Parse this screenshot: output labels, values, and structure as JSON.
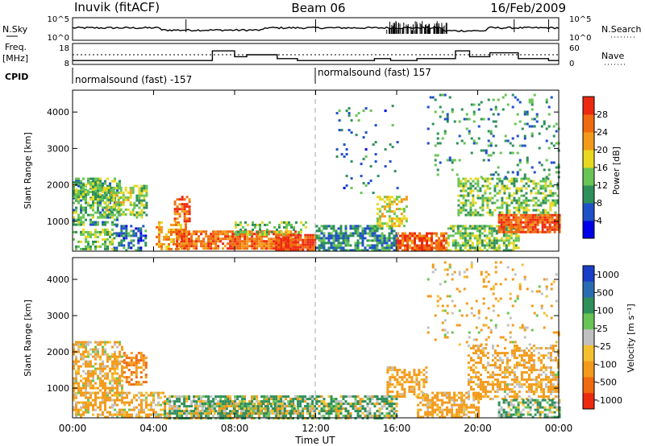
{
  "header": {
    "station": "Inuvik (fitACF)",
    "beam": "Beam 06",
    "date": "16/Feb/2009"
  },
  "top_panel": {
    "left_label": "N.Sky",
    "left_ticks": [
      "10^5",
      "10^0"
    ],
    "right_ticks": [
      "10^5",
      "10^0"
    ],
    "right_label": "N.Search"
  },
  "freq_panel": {
    "left_label_line1": "Freq.",
    "left_label_line2": "[MHz]",
    "left_ticks": [
      "18",
      "8"
    ],
    "right_ticks": [
      "60",
      "0"
    ],
    "right_label": "Nave",
    "freq_steps": [
      {
        "start": 0.0,
        "end": 6.9,
        "value": 10
      },
      {
        "start": 6.9,
        "end": 8.0,
        "value": 15
      },
      {
        "start": 8.0,
        "end": 8.6,
        "value": 12
      },
      {
        "start": 8.6,
        "end": 10.1,
        "value": 13
      },
      {
        "start": 10.1,
        "end": 11.1,
        "value": 11
      },
      {
        "start": 11.1,
        "end": 14.9,
        "value": 10
      },
      {
        "start": 14.9,
        "end": 15.7,
        "value": 11
      },
      {
        "start": 15.7,
        "end": 17.0,
        "value": 10
      },
      {
        "start": 17.0,
        "end": 18.9,
        "value": 11
      },
      {
        "start": 18.9,
        "end": 19.6,
        "value": 15
      },
      {
        "start": 19.6,
        "end": 20.6,
        "value": 12
      },
      {
        "start": 20.6,
        "end": 22.0,
        "value": 14
      },
      {
        "start": 22.0,
        "end": 23.5,
        "value": 11
      },
      {
        "start": 23.5,
        "end": 24.0,
        "value": 10
      }
    ]
  },
  "cpid": {
    "label": "CPID",
    "segments": [
      {
        "text": "normalsound (fast) -157",
        "start": 0
      },
      {
        "text": "normalsound (fast) 157",
        "start": 12
      }
    ]
  },
  "time_axis": {
    "label": "Time UT",
    "ticks": [
      "00:00",
      "04:00",
      "08:00",
      "12:00",
      "16:00",
      "20:00",
      "00:00"
    ],
    "tick_hours": [
      0,
      4,
      8,
      12,
      16,
      20,
      24
    ]
  },
  "power_panel": {
    "ylabel": "Slant Range [km]",
    "yticks": [
      "1000",
      "2000",
      "3000",
      "4000"
    ],
    "colorbar_label": "Power [dB]",
    "colorbar_ticks": [
      "4",
      "8",
      "12",
      "16",
      "20",
      "24",
      "28"
    ],
    "colorbar_colors": [
      "#0000e8",
      "#1e50c8",
      "#2e8f5a",
      "#68c454",
      "#e8d820",
      "#f39a1a",
      "#f06a10",
      "#ec2a10"
    ]
  },
  "velocity_panel": {
    "ylabel": "Slant Range [km]",
    "yticks": [
      "1000",
      "2000",
      "3000",
      "4000"
    ],
    "colorbar_label": "Velocity [m s⁻¹]",
    "colorbar_ticks": [
      "1000",
      "500",
      "100",
      "25",
      "-25",
      "-100",
      "-500",
      "-1000"
    ],
    "colorbar_colors": [
      "#1a3ec8",
      "#2a6cb0",
      "#2e8f5a",
      "#68c454",
      "#c0c0c0",
      "#f3c030",
      "#f39a1a",
      "#f06a10",
      "#ec2a10"
    ]
  },
  "chart_data": [
    {
      "type": "heatmap",
      "title": "Power",
      "xlabel": "Time UT",
      "ylabel": "Slant Range [km]",
      "xlim": [
        0,
        24
      ],
      "ylim": [
        180,
        4600
      ],
      "colorbar": {
        "label": "Power [dB]",
        "range": [
          0,
          32
        ]
      },
      "regions": [
        {
          "t0": 0.0,
          "t1": 2.3,
          "r0": 900,
          "r1": 2200,
          "level": 12,
          "density": 0.6
        },
        {
          "t0": 0.0,
          "t1": 1.5,
          "r0": 1600,
          "r1": 2100,
          "level": 14,
          "density": 0.55
        },
        {
          "t0": 1.5,
          "t1": 3.0,
          "r0": 1200,
          "r1": 1950,
          "level": 16,
          "density": 0.65
        },
        {
          "t0": 3.0,
          "t1": 3.6,
          "r0": 1100,
          "r1": 2000,
          "level": 14,
          "density": 0.5
        },
        {
          "t0": 2.0,
          "t1": 3.6,
          "r0": 200,
          "r1": 900,
          "level": 8,
          "density": 0.55
        },
        {
          "t0": 0.0,
          "t1": 2.0,
          "r0": 250,
          "r1": 800,
          "level": 14,
          "density": 0.5
        },
        {
          "t0": 4.1,
          "t1": 5.7,
          "r0": 250,
          "r1": 1000,
          "level": 22,
          "density": 0.55
        },
        {
          "t0": 5.0,
          "t1": 5.8,
          "r0": 1000,
          "r1": 1700,
          "level": 26,
          "density": 0.6
        },
        {
          "t0": 5.1,
          "t1": 11.0,
          "r0": 250,
          "r1": 750,
          "level": 25,
          "density": 0.85
        },
        {
          "t0": 8.0,
          "t1": 11.5,
          "r0": 650,
          "r1": 1000,
          "level": 14,
          "density": 0.45
        },
        {
          "t0": 10.0,
          "t1": 12.0,
          "r0": 200,
          "r1": 650,
          "level": 28,
          "density": 0.9
        },
        {
          "t0": 12.0,
          "t1": 16.0,
          "r0": 200,
          "r1": 900,
          "level": 10,
          "density": 0.7
        },
        {
          "t0": 15.0,
          "t1": 16.5,
          "r0": 900,
          "r1": 1700,
          "level": 18,
          "density": 0.55
        },
        {
          "t0": 16.0,
          "t1": 18.5,
          "r0": 200,
          "r1": 700,
          "level": 27,
          "density": 0.85
        },
        {
          "t0": 18.5,
          "t1": 22.0,
          "r0": 200,
          "r1": 900,
          "level": 14,
          "density": 0.7
        },
        {
          "t0": 19.0,
          "t1": 24.0,
          "r0": 1200,
          "r1": 2200,
          "level": 14,
          "density": 0.5
        },
        {
          "t0": 21.0,
          "t1": 24.0,
          "r0": 700,
          "r1": 1200,
          "level": 28,
          "density": 0.85
        },
        {
          "t0": 17.5,
          "t1": 24.0,
          "r0": 2200,
          "r1": 4500,
          "level": 10,
          "density": 0.12
        },
        {
          "t0": 13.0,
          "t1": 16.0,
          "r0": 1800,
          "r1": 4200,
          "level": 8,
          "density": 0.06
        }
      ]
    },
    {
      "type": "heatmap",
      "title": "Velocity",
      "xlabel": "Time UT",
      "ylabel": "Slant Range [km]",
      "xlim": [
        0,
        24
      ],
      "ylim": [
        180,
        4600
      ],
      "colorbar": {
        "label": "Velocity [m s⁻¹]",
        "range": [
          -1000,
          1000
        ]
      },
      "regions": [
        {
          "t0": 0.0,
          "t1": 2.5,
          "r0": 900,
          "r1": 2300,
          "level": -100,
          "density": 0.6
        },
        {
          "t0": 2.5,
          "t1": 3.6,
          "r0": 1100,
          "r1": 2000,
          "level": -300,
          "density": 0.5
        },
        {
          "t0": 0.0,
          "t1": 4.5,
          "r0": 200,
          "r1": 900,
          "level": -100,
          "density": 0.6
        },
        {
          "t0": 4.5,
          "t1": 12.0,
          "r0": 200,
          "r1": 800,
          "level": 50,
          "density": 0.75
        },
        {
          "t0": 6.0,
          "t1": 11.0,
          "r0": 300,
          "r1": 600,
          "level": 0,
          "density": 0.7
        },
        {
          "t0": 12.0,
          "t1": 16.0,
          "r0": 200,
          "r1": 800,
          "level": 60,
          "density": 0.65
        },
        {
          "t0": 15.5,
          "t1": 17.5,
          "r0": 800,
          "r1": 1600,
          "level": -150,
          "density": 0.55
        },
        {
          "t0": 17.0,
          "t1": 20.0,
          "r0": 200,
          "r1": 900,
          "level": -150,
          "density": 0.6
        },
        {
          "t0": 19.5,
          "t1": 24.0,
          "r0": 700,
          "r1": 2200,
          "level": -120,
          "density": 0.5
        },
        {
          "t0": 21.0,
          "t1": 24.0,
          "r0": 200,
          "r1": 700,
          "level": 80,
          "density": 0.6
        },
        {
          "t0": 17.5,
          "t1": 24.0,
          "r0": 2200,
          "r1": 4500,
          "level": -100,
          "density": 0.1
        }
      ]
    }
  ]
}
